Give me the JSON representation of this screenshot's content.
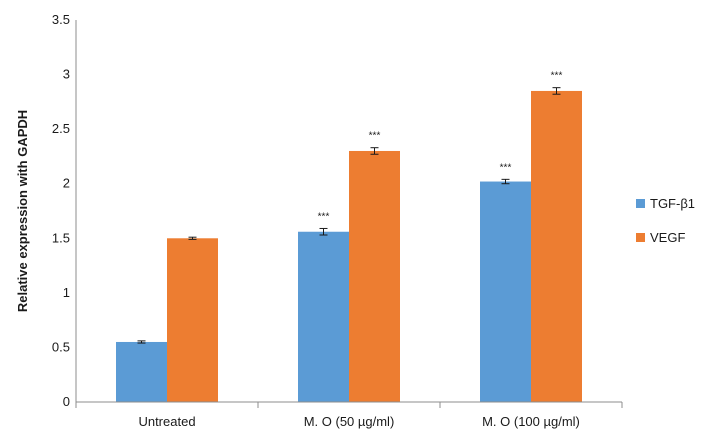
{
  "chart_data": {
    "type": "bar",
    "title": "",
    "xlabel": "",
    "ylabel": "Relative expression with GAPDH",
    "ylim": [
      0,
      3.5
    ],
    "yticks": [
      0,
      0.5,
      1,
      1.5,
      2,
      2.5,
      3,
      3.5
    ],
    "ytick_labels": [
      "0",
      "0.5",
      "1",
      "1.5",
      "2",
      "2.5",
      "3",
      "3.5"
    ],
    "grid": false,
    "legend_position": "right",
    "categories": [
      "Untreated",
      "M. O (50 µg/ml)",
      "M. O  (100 µg/ml)"
    ],
    "series": [
      {
        "name": "TGF-β1",
        "color": "#5B9BD5",
        "values": [
          0.55,
          1.56,
          2.02
        ],
        "errors": [
          0.01,
          0.03,
          0.02
        ],
        "annotations": [
          "",
          "***",
          "***"
        ]
      },
      {
        "name": "VEGF",
        "color": "#ED7D31",
        "values": [
          1.5,
          2.3,
          2.85
        ],
        "errors": [
          0.01,
          0.03,
          0.03
        ],
        "annotations": [
          "",
          "***",
          "***"
        ]
      }
    ]
  }
}
